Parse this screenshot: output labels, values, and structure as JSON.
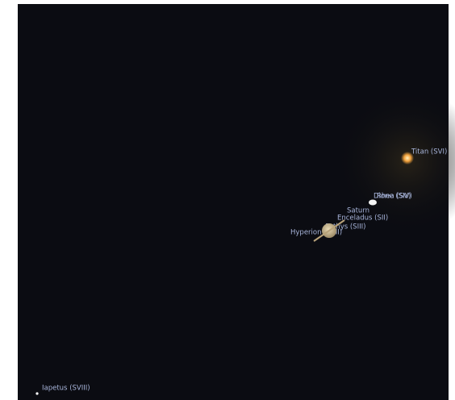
{
  "labels": {
    "titan": "Titan (SVI)",
    "dione": "Dione (SIV)",
    "rhea": "Rhea (SV)",
    "saturn": "Saturn",
    "enceladus": "Enceladus (SII)",
    "tethys": "Tethys (SIII)",
    "hyperion": "Hyperion (SVII)",
    "iapetus": "Iapetus (SVIII)"
  }
}
